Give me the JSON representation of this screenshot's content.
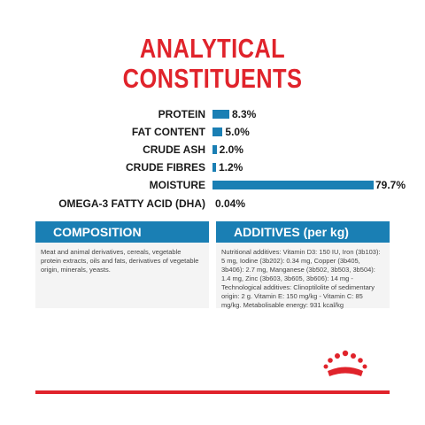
{
  "title": {
    "line1": "ANALYTICAL",
    "line2": "CONSTITUENTS"
  },
  "chart_data": {
    "type": "bar",
    "categories": [
      "PROTEIN",
      "FAT CONTENT",
      "CRUDE ASH",
      "CRUDE FIBRES",
      "MOISTURE",
      "OMEGA-3 FATTY ACID (DHA)"
    ],
    "values": [
      8.3,
      5.0,
      2.0,
      1.2,
      79.7,
      0.04
    ],
    "value_labels": [
      "8.3%",
      "5.0%",
      "2.0%",
      "1.2%",
      "79.7%",
      "0.04%"
    ],
    "bar_drawn": [
      true,
      true,
      true,
      true,
      true,
      false
    ],
    "xlim": [
      0,
      100
    ],
    "bar_color": "#1a7fb4"
  },
  "composition": {
    "heading": "COMPOSITION",
    "text": "Meat and animal derivatives, cereals, vegetable protein extracts, oils and fats, derivatives of vegetable origin, minerals, yeasts."
  },
  "additives": {
    "heading": "ADDITIVES (per kg)",
    "text": "Nutritional additives: Vitamin D3: 150 IU, Iron (3b103): 5 mg, Iodine (3b202): 0.34 mg, Copper (3b405, 3b406): 2.7 mg, Manganese (3b502, 3b503, 3b504): 1.4 mg, Zinc (3b603, 3b605, 3b606): 14 mg - Technological additives: Clinoptilolite of sedimentary origin: 2 g. Vitamin E: 150 mg/kg - Vitamin C: 85 mg/kg. Metabolisable energy: 931 kcal/kg"
  },
  "colors": {
    "brand_red": "#e0232b",
    "accent_blue": "#1a7fb4"
  },
  "logo": {
    "icon": "crown-logo-icon"
  }
}
